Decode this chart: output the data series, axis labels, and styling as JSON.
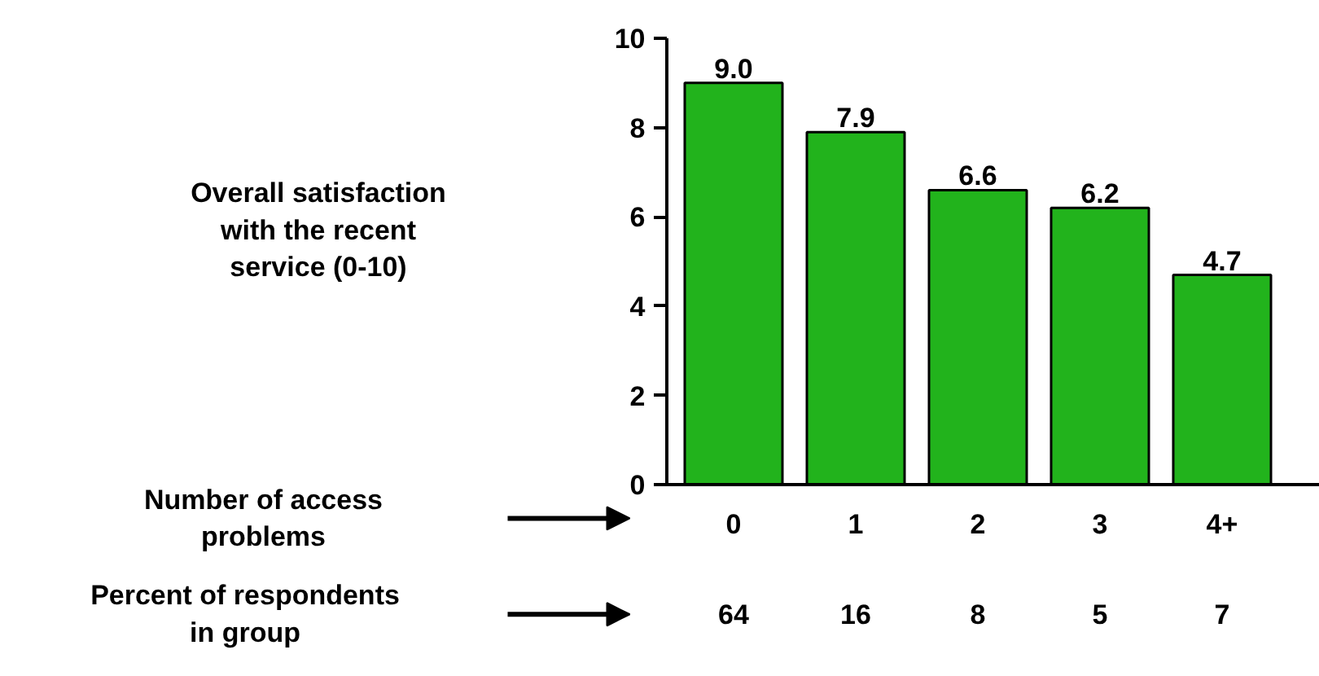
{
  "chart_data": {
    "type": "bar",
    "categories": [
      "0",
      "1",
      "2",
      "3",
      "4+"
    ],
    "values": [
      9.0,
      7.9,
      6.6,
      6.2,
      4.7
    ],
    "value_labels": [
      "9.0",
      "7.9",
      "6.6",
      "6.2",
      "4.7"
    ],
    "color": "#22b31c",
    "ylim": [
      0,
      10
    ],
    "yticks": [
      0,
      2,
      4,
      6,
      8,
      10
    ],
    "grid": false,
    "annotations": [
      "Overall satisfaction with the recent service (0-10)",
      "Number of access problems",
      "Percent of respondents in group",
      "64",
      "16",
      "8",
      "5",
      "7"
    ]
  }
}
